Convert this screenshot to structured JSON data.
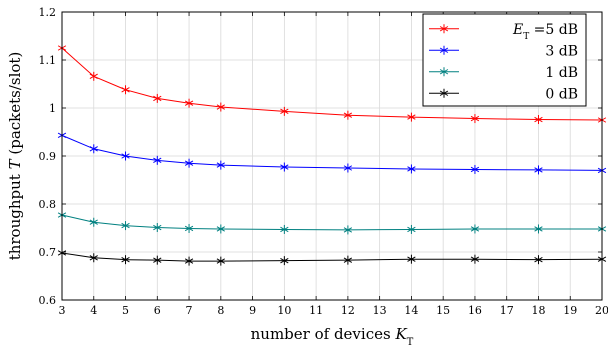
{
  "chart_data": {
    "type": "line",
    "xlabel_prefix": "number of devices ",
    "xlabel_var": "K",
    "xlabel_sub": "T",
    "ylabel_prefix": "throughput ",
    "ylabel_var": "T",
    "ylabel_suffix": " (packets/slot)",
    "x": [
      3,
      4,
      5,
      6,
      7,
      8,
      10,
      12,
      14,
      16,
      18,
      20
    ],
    "xlim": [
      3,
      20
    ],
    "ylim": [
      0.6,
      1.2
    ],
    "xticks": [
      "3",
      "4",
      "5",
      "6",
      "7",
      "8",
      "9",
      "10",
      "11",
      "12",
      "13",
      "14",
      "15",
      "16",
      "17",
      "18",
      "19",
      "20"
    ],
    "yticks": [
      "0.6",
      "0.7",
      "0.8",
      "0.9",
      "1",
      "1.1",
      "1.2"
    ],
    "grid": true,
    "legend_position": "top-right",
    "legend_title_var": "E",
    "legend_title_sub": "T",
    "series": [
      {
        "name": "=5 dB",
        "color": "#ff0000",
        "marker": "asterisk",
        "values": [
          1.125,
          1.066,
          1.038,
          1.02,
          1.01,
          1.002,
          0.993,
          0.985,
          0.981,
          0.978,
          0.976,
          0.975
        ]
      },
      {
        "name": "3 dB",
        "color": "#0000ff",
        "marker": "asterisk",
        "values": [
          0.943,
          0.915,
          0.9,
          0.891,
          0.885,
          0.881,
          0.877,
          0.875,
          0.873,
          0.872,
          0.871,
          0.87
        ]
      },
      {
        "name": "1 dB",
        "color": "#008080",
        "marker": "asterisk",
        "values": [
          0.777,
          0.762,
          0.755,
          0.751,
          0.749,
          0.748,
          0.747,
          0.746,
          0.747,
          0.748,
          0.748,
          0.748
        ]
      },
      {
        "name": "0 dB",
        "color": "#000000",
        "marker": "asterisk",
        "values": [
          0.698,
          0.688,
          0.684,
          0.683,
          0.681,
          0.681,
          0.682,
          0.683,
          0.685,
          0.685,
          0.684,
          0.685
        ]
      }
    ]
  }
}
